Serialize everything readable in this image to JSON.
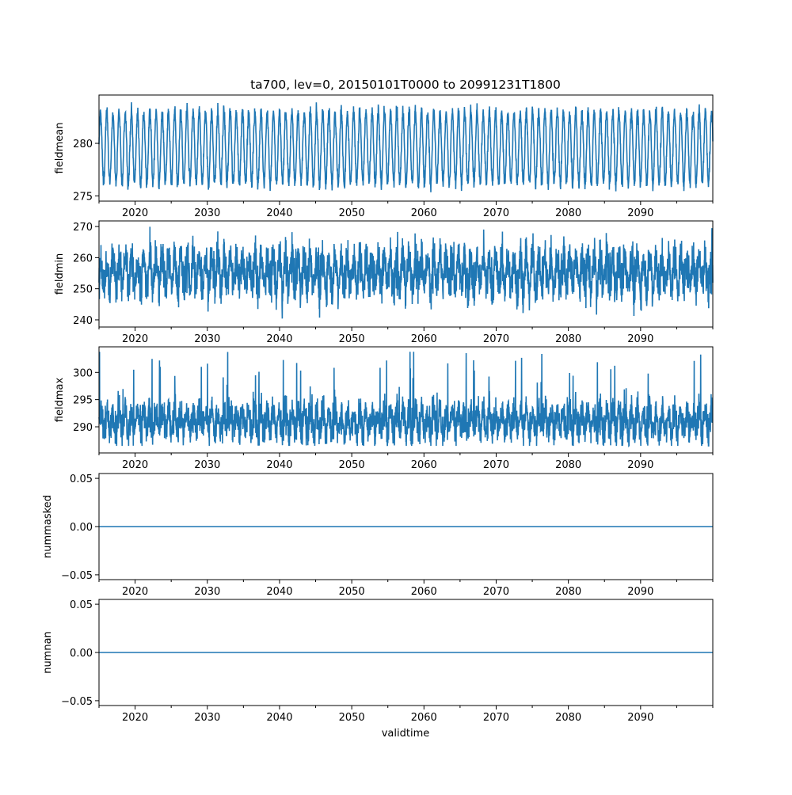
{
  "chart_data": {
    "type": "line",
    "title": "ta700, lev=0, 20150101T0000 to 20991231T1800",
    "xlabel": "validtime",
    "xlim": [
      2015.0,
      2100.0
    ],
    "xticks": [
      2020,
      2030,
      2040,
      2050,
      2060,
      2070,
      2080,
      2090
    ],
    "x_minor_ticks": [
      2015,
      2025,
      2035,
      2045,
      2055,
      2065,
      2075,
      2085,
      2095,
      2100
    ],
    "series_color": "#1f77b4",
    "sampling": "6-hourly, 2015-01-01 to 2099-12-31",
    "panels": [
      {
        "ylabel": "fieldmean",
        "ylim": [
          274.5,
          284.6
        ],
        "yticks": [
          "275",
          "280"
        ],
        "ytick_values": [
          275,
          280
        ],
        "summary": {
          "mean": 279.6,
          "seasonal_amplitude": 3.4,
          "noise": 0.6,
          "min": 275.0,
          "max": 284.3
        }
      },
      {
        "ylabel": "fieldmin",
        "ylim": [
          237.7,
          271.8
        ],
        "yticks": [
          "240",
          "250",
          "260",
          "270"
        ],
        "ytick_values": [
          240,
          250,
          260,
          270
        ],
        "summary": {
          "mean": 255.5,
          "seasonal_amplitude": 4.5,
          "noise": 3.5,
          "min": 239.0,
          "max": 270.0
        }
      },
      {
        "ylabel": "fieldmax",
        "ylim": [
          285.2,
          304.7
        ],
        "yticks": [
          "290",
          "295",
          "300"
        ],
        "ytick_values": [
          290,
          295,
          300
        ],
        "summary": {
          "mean": 291.0,
          "seasonal_amplitude": 1.8,
          "noise": 1.6,
          "min": 286.5,
          "max": 303.8
        }
      },
      {
        "ylabel": "nummasked",
        "ylim": [
          -0.055,
          0.055
        ],
        "yticks": [
          "−0.05",
          "0.00",
          "0.05"
        ],
        "ytick_values": [
          -0.05,
          0,
          0.05
        ],
        "summary": {
          "constant": 0
        }
      },
      {
        "ylabel": "numnan",
        "ylim": [
          -0.055,
          0.055
        ],
        "yticks": [
          "−0.05",
          "0.00",
          "0.05"
        ],
        "ytick_values": [
          -0.05,
          0,
          0.05
        ],
        "summary": {
          "constant": 0
        }
      }
    ]
  }
}
